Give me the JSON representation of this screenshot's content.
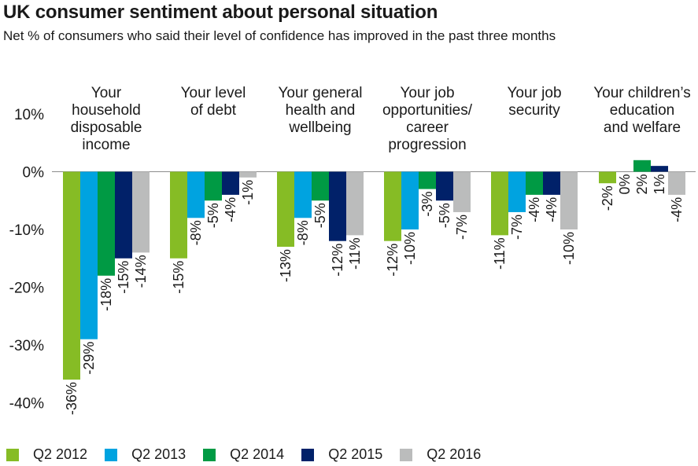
{
  "title": "UK consumer sentiment about personal situation",
  "subtitle": "Net % of consumers who said their level of confidence has improved in the past three months",
  "chart_data": {
    "type": "bar",
    "title": "UK consumer sentiment about personal situation",
    "subtitle": "Net % of consumers who said their level of confidence has improved in the past three months",
    "categories": [
      [
        "Your",
        "household",
        "disposable",
        "income"
      ],
      [
        "Your level",
        "of debt"
      ],
      [
        "Your general",
        "health and",
        "wellbeing"
      ],
      [
        "Your job",
        "opportunities/",
        "career",
        "progression"
      ],
      [
        "Your job",
        "security"
      ],
      [
        "Your children’s",
        "education",
        "and welfare"
      ]
    ],
    "series": [
      {
        "name": "Q2 2012",
        "color": "#86bc25",
        "values": [
          -36,
          -15,
          -13,
          -12,
          -11,
          -2
        ]
      },
      {
        "name": "Q2 2013",
        "color": "#00a3e0",
        "values": [
          -29,
          -8,
          -8,
          -10,
          -7,
          0
        ]
      },
      {
        "name": "Q2 2014",
        "color": "#009a44",
        "values": [
          -18,
          -5,
          -5,
          -3,
          -4,
          2
        ]
      },
      {
        "name": "Q2 2015",
        "color": "#012169",
        "values": [
          -15,
          -4,
          -12,
          -5,
          -4,
          1
        ]
      },
      {
        "name": "Q2 2016",
        "color": "#bbbcbc",
        "values": [
          -14,
          -1,
          -11,
          -7,
          -10,
          -4
        ]
      }
    ],
    "value_suffix": "%",
    "yticks": [
      10,
      0,
      -10,
      -20,
      -30,
      -40
    ],
    "ytick_labels": [
      "10%",
      "0%",
      "-10%",
      "-20%",
      "-30%",
      "-40%"
    ],
    "ylim": [
      -40,
      10
    ],
    "grid": false,
    "legend_position": "bottom-left"
  }
}
